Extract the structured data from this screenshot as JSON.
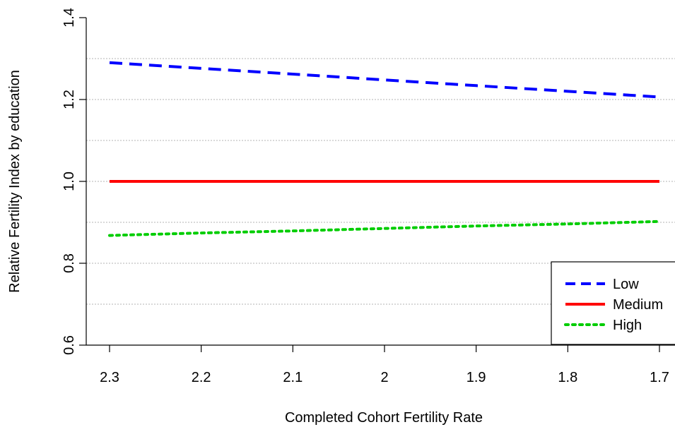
{
  "chart_data": {
    "type": "line",
    "title": "",
    "xlabel": "Completed Cohort Fertility Rate",
    "ylabel": "Relative Fertility Index by education",
    "x": [
      2.3,
      2.2,
      2.1,
      2.0,
      1.9,
      1.8,
      1.7
    ],
    "x_tick_labels": [
      "2.3",
      "2.2",
      "2.1",
      "2",
      "1.9",
      "1.8",
      "1.7"
    ],
    "xlim": [
      2.3,
      1.7
    ],
    "x_reversed": true,
    "ylim": [
      0.6,
      1.4
    ],
    "y_ticks": [
      0.6,
      0.8,
      1.0,
      1.2,
      1.4
    ],
    "y_tick_labels": [
      "0.6",
      "0.8",
      "1.0",
      "1.2",
      "1.4"
    ],
    "y_gridlines": [
      0.7,
      0.8,
      0.9,
      1.0,
      1.1,
      1.2,
      1.3
    ],
    "grid": "horizontal dotted",
    "legend_position": "bottom-right",
    "series": [
      {
        "name": "Low",
        "values": [
          1.29,
          1.276,
          1.262,
          1.248,
          1.234,
          1.22,
          1.206
        ],
        "color": "#0000ff",
        "dash": "dashed"
      },
      {
        "name": "Medium",
        "values": [
          1.0,
          1.0,
          1.0,
          1.0,
          1.0,
          1.0,
          1.0
        ],
        "color": "#ff0000",
        "dash": "solid"
      },
      {
        "name": "High",
        "values": [
          0.868,
          0.874,
          0.879,
          0.885,
          0.891,
          0.896,
          0.902
        ],
        "color": "#00cd00",
        "dash": "dotted"
      }
    ]
  }
}
